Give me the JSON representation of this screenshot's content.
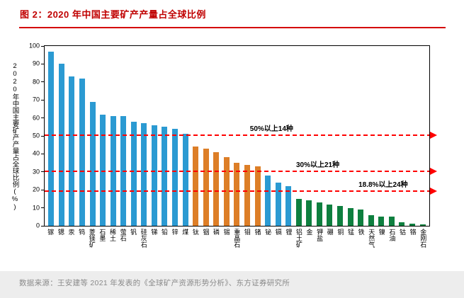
{
  "header": {
    "title": "图 2：2020 年中国主要矿产产量占全球比例"
  },
  "chart_data": {
    "type": "bar",
    "title": "2020 年中国主要矿产产量占全球比例",
    "xlabel": "",
    "ylabel": "2020年中国主要矿产产量占全球比例(%)",
    "ylim": [
      0,
      100
    ],
    "yticks": [
      0,
      10,
      20,
      30,
      40,
      50,
      60,
      70,
      80,
      90,
      100
    ],
    "grid": false,
    "legend": "none",
    "bars": [
      {
        "label": "镓",
        "value": 97,
        "group": "blue"
      },
      {
        "label": "锶",
        "value": 90,
        "group": "blue"
      },
      {
        "label": "汞",
        "value": 83,
        "group": "blue"
      },
      {
        "label": "钨",
        "value": 82,
        "group": "blue"
      },
      {
        "label": "菱镁矿",
        "value": 69,
        "group": "blue"
      },
      {
        "label": "石墨",
        "value": 62,
        "group": "blue"
      },
      {
        "label": "稀土",
        "value": 61,
        "group": "blue"
      },
      {
        "label": "萤石",
        "value": 61,
        "group": "blue"
      },
      {
        "label": "钒",
        "value": 58,
        "group": "blue"
      },
      {
        "label": "硅灰石",
        "value": 57,
        "group": "blue"
      },
      {
        "label": "锑",
        "value": 56,
        "group": "blue"
      },
      {
        "label": "铅",
        "value": 55,
        "group": "blue"
      },
      {
        "label": "锌",
        "value": 54,
        "group": "blue"
      },
      {
        "label": "煤",
        "value": 51,
        "group": "blue"
      },
      {
        "label": "钛",
        "value": 44,
        "group": "orange"
      },
      {
        "label": "铟",
        "value": 43,
        "group": "orange"
      },
      {
        "label": "磷",
        "value": 41,
        "group": "orange"
      },
      {
        "label": "锡",
        "value": 38,
        "group": "orange"
      },
      {
        "label": "重晶石",
        "value": 35,
        "group": "orange"
      },
      {
        "label": "钼",
        "value": 34,
        "group": "orange"
      },
      {
        "label": "锗",
        "value": 33,
        "group": "orange"
      },
      {
        "label": "铋",
        "value": 28,
        "group": "blue"
      },
      {
        "label": "镉",
        "value": 24,
        "group": "blue"
      },
      {
        "label": "锂",
        "value": 22,
        "group": "blue"
      },
      {
        "label": "铝土矿",
        "value": 15,
        "group": "green"
      },
      {
        "label": "金",
        "value": 14,
        "group": "green"
      },
      {
        "label": "钾盐",
        "value": 13,
        "group": "green"
      },
      {
        "label": "硼",
        "value": 12,
        "group": "green"
      },
      {
        "label": "铜",
        "value": 11,
        "group": "green"
      },
      {
        "label": "锰",
        "value": 10,
        "group": "green"
      },
      {
        "label": "铁",
        "value": 9,
        "group": "green"
      },
      {
        "label": "天然气",
        "value": 6,
        "group": "green"
      },
      {
        "label": "镍",
        "value": 5,
        "group": "green"
      },
      {
        "label": "石油",
        "value": 5,
        "group": "green"
      },
      {
        "label": "钴",
        "value": 2,
        "group": "green"
      },
      {
        "label": "铬",
        "value": 1,
        "group": "green"
      },
      {
        "label": "金刚石",
        "value": 0.8,
        "group": "green"
      }
    ],
    "annotations": [
      {
        "text": "50%以上14种",
        "y": 50,
        "x_pct": 59
      },
      {
        "text": "30%以上21种",
        "y": 30,
        "x_pct": 71
      },
      {
        "text": "18.8%以上24种",
        "y": 18.8,
        "x_pct": 88
      }
    ],
    "colors": {
      "blue": "#2b9ad2",
      "orange": "#dd7e27",
      "green": "#0e7f3f",
      "refline": "#ff0000",
      "title": "#c00000"
    }
  },
  "footer": {
    "source": "数据来源：王安建等 2021 年发表的《全球矿产资源形势分析》、东方证券研究所"
  }
}
